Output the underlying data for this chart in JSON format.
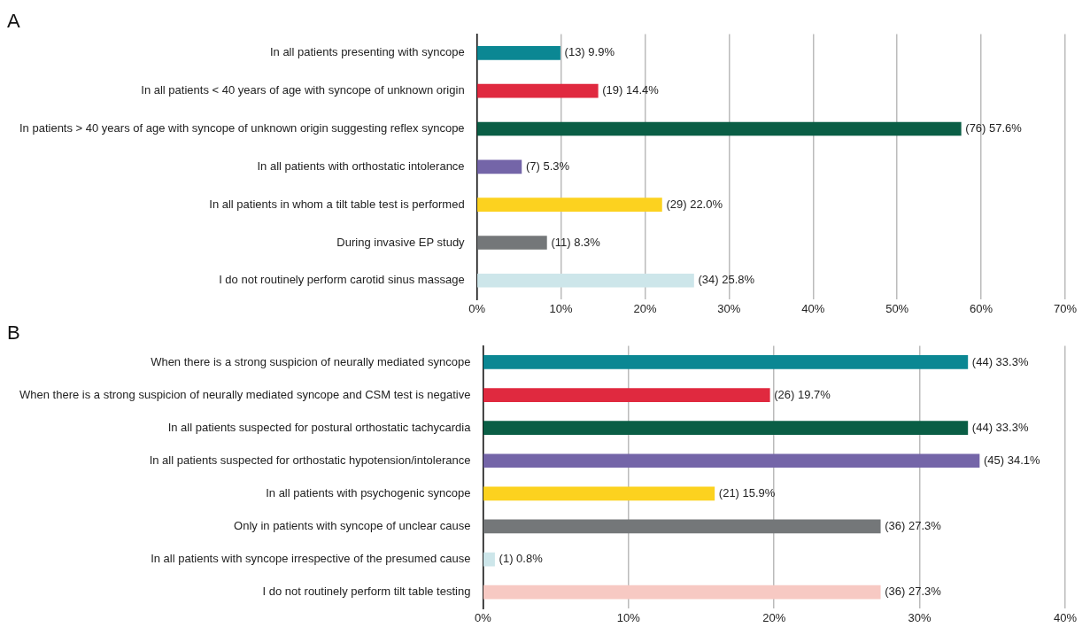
{
  "chart_data": [
    {
      "type": "bar",
      "orientation": "horizontal",
      "title": "A",
      "categories": [
        "In all patients presenting with syncope",
        "In all patients < 40 years of age with syncope of unknown origin",
        "In patients > 40 years of age with syncope of unknown origin suggesting reflex syncope",
        "In all patients with orthostatic intolerance",
        "In all patients in whom a tilt table test is performed",
        "During invasive EP study",
        "I do not routinely perform carotid sinus massage"
      ],
      "values": [
        9.9,
        14.4,
        57.6,
        5.3,
        22.0,
        8.3,
        25.8
      ],
      "colors": [
        "#0b8793",
        "#e0293f",
        "#0a5e45",
        "#7465a8",
        "#fcd21f",
        "#747779",
        "#cde6ea"
      ],
      "value_labels": [
        "(13) 9.9%",
        "(19) 14.4%",
        "(76) 57.6%",
        "(7) 5.3%",
        "(29) 22.0%",
        "(11) 8.3%",
        "(34) 25.8%"
      ],
      "xlim": [
        0,
        70
      ],
      "xticks": [
        {
          "value": 0,
          "label": "0%"
        },
        {
          "value": 10,
          "label": "10%"
        },
        {
          "value": 20,
          "label": "20%"
        },
        {
          "value": 30,
          "label": "30%"
        },
        {
          "value": 40,
          "label": "40%"
        },
        {
          "value": 50,
          "label": "50%"
        },
        {
          "value": 60,
          "label": "60%"
        },
        {
          "value": 70,
          "label": "70%"
        }
      ],
      "grid": "x",
      "legend": false
    },
    {
      "type": "bar",
      "orientation": "horizontal",
      "title": "B",
      "categories": [
        "When there is a strong suspicion of neurally mediated syncope",
        "When there is a strong suspicion of neurally mediated syncope and CSM test is negative",
        "In all patients suspected for postural orthostatic tachycardia",
        "In all patients suspected for orthostatic hypotension/intolerance",
        "In all patients with psychogenic syncope",
        "Only in patients with syncope of unclear cause",
        "In all patients with syncope irrespective of the presumed cause",
        "I do not routinely perform tilt table testing"
      ],
      "values": [
        33.3,
        19.7,
        33.3,
        34.1,
        15.9,
        27.3,
        0.8,
        27.3
      ],
      "colors": [
        "#0b8793",
        "#e0293f",
        "#0a5e45",
        "#7465a8",
        "#fcd21f",
        "#747779",
        "#cde6ea",
        "#f7c9c3"
      ],
      "value_labels": [
        "(44) 33.3%",
        "(26) 19.7%",
        "(44) 33.3%",
        "(45) 34.1%",
        "(21) 15.9%",
        "(36) 27.3%",
        "(1) 0.8%",
        "(36) 27.3%"
      ],
      "xlim": [
        0,
        40
      ],
      "xticks": [
        {
          "value": 0,
          "label": "0%"
        },
        {
          "value": 10,
          "label": "10%"
        },
        {
          "value": 20,
          "label": "20%"
        },
        {
          "value": 30,
          "label": "30%"
        },
        {
          "value": 40,
          "label": "40%"
        }
      ],
      "grid": "x",
      "legend": false
    }
  ]
}
